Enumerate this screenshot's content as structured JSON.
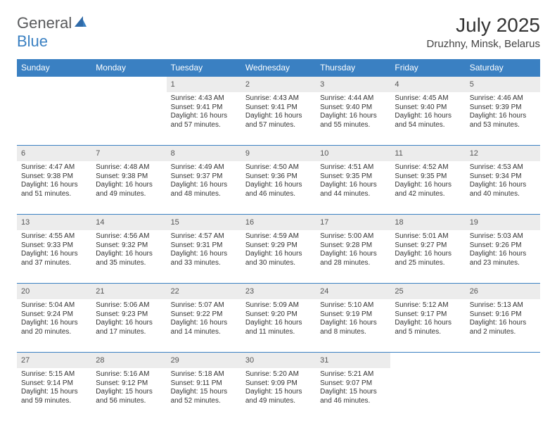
{
  "logo": {
    "textGray": "General",
    "textBlue": "Blue"
  },
  "title": "July 2025",
  "location": "Druzhny, Minsk, Belarus",
  "weekdays": [
    "Sunday",
    "Monday",
    "Tuesday",
    "Wednesday",
    "Thursday",
    "Friday",
    "Saturday"
  ],
  "colors": {
    "headerBg": "#3a80c2",
    "headerText": "#ffffff",
    "dayNumBg": "#ececec",
    "borderTop": "#3a80c2",
    "logoGray": "#58595b",
    "logoBlue": "#3a80c2",
    "bodyBg": "#ffffff"
  },
  "weeks": [
    [
      null,
      null,
      {
        "n": "1",
        "sr": "Sunrise: 4:43 AM",
        "ss": "Sunset: 9:41 PM",
        "d1": "Daylight: 16 hours",
        "d2": "and 57 minutes."
      },
      {
        "n": "2",
        "sr": "Sunrise: 4:43 AM",
        "ss": "Sunset: 9:41 PM",
        "d1": "Daylight: 16 hours",
        "d2": "and 57 minutes."
      },
      {
        "n": "3",
        "sr": "Sunrise: 4:44 AM",
        "ss": "Sunset: 9:40 PM",
        "d1": "Daylight: 16 hours",
        "d2": "and 55 minutes."
      },
      {
        "n": "4",
        "sr": "Sunrise: 4:45 AM",
        "ss": "Sunset: 9:40 PM",
        "d1": "Daylight: 16 hours",
        "d2": "and 54 minutes."
      },
      {
        "n": "5",
        "sr": "Sunrise: 4:46 AM",
        "ss": "Sunset: 9:39 PM",
        "d1": "Daylight: 16 hours",
        "d2": "and 53 minutes."
      }
    ],
    [
      {
        "n": "6",
        "sr": "Sunrise: 4:47 AM",
        "ss": "Sunset: 9:38 PM",
        "d1": "Daylight: 16 hours",
        "d2": "and 51 minutes."
      },
      {
        "n": "7",
        "sr": "Sunrise: 4:48 AM",
        "ss": "Sunset: 9:38 PM",
        "d1": "Daylight: 16 hours",
        "d2": "and 49 minutes."
      },
      {
        "n": "8",
        "sr": "Sunrise: 4:49 AM",
        "ss": "Sunset: 9:37 PM",
        "d1": "Daylight: 16 hours",
        "d2": "and 48 minutes."
      },
      {
        "n": "9",
        "sr": "Sunrise: 4:50 AM",
        "ss": "Sunset: 9:36 PM",
        "d1": "Daylight: 16 hours",
        "d2": "and 46 minutes."
      },
      {
        "n": "10",
        "sr": "Sunrise: 4:51 AM",
        "ss": "Sunset: 9:35 PM",
        "d1": "Daylight: 16 hours",
        "d2": "and 44 minutes."
      },
      {
        "n": "11",
        "sr": "Sunrise: 4:52 AM",
        "ss": "Sunset: 9:35 PM",
        "d1": "Daylight: 16 hours",
        "d2": "and 42 minutes."
      },
      {
        "n": "12",
        "sr": "Sunrise: 4:53 AM",
        "ss": "Sunset: 9:34 PM",
        "d1": "Daylight: 16 hours",
        "d2": "and 40 minutes."
      }
    ],
    [
      {
        "n": "13",
        "sr": "Sunrise: 4:55 AM",
        "ss": "Sunset: 9:33 PM",
        "d1": "Daylight: 16 hours",
        "d2": "and 37 minutes."
      },
      {
        "n": "14",
        "sr": "Sunrise: 4:56 AM",
        "ss": "Sunset: 9:32 PM",
        "d1": "Daylight: 16 hours",
        "d2": "and 35 minutes."
      },
      {
        "n": "15",
        "sr": "Sunrise: 4:57 AM",
        "ss": "Sunset: 9:31 PM",
        "d1": "Daylight: 16 hours",
        "d2": "and 33 minutes."
      },
      {
        "n": "16",
        "sr": "Sunrise: 4:59 AM",
        "ss": "Sunset: 9:29 PM",
        "d1": "Daylight: 16 hours",
        "d2": "and 30 minutes."
      },
      {
        "n": "17",
        "sr": "Sunrise: 5:00 AM",
        "ss": "Sunset: 9:28 PM",
        "d1": "Daylight: 16 hours",
        "d2": "and 28 minutes."
      },
      {
        "n": "18",
        "sr": "Sunrise: 5:01 AM",
        "ss": "Sunset: 9:27 PM",
        "d1": "Daylight: 16 hours",
        "d2": "and 25 minutes."
      },
      {
        "n": "19",
        "sr": "Sunrise: 5:03 AM",
        "ss": "Sunset: 9:26 PM",
        "d1": "Daylight: 16 hours",
        "d2": "and 23 minutes."
      }
    ],
    [
      {
        "n": "20",
        "sr": "Sunrise: 5:04 AM",
        "ss": "Sunset: 9:24 PM",
        "d1": "Daylight: 16 hours",
        "d2": "and 20 minutes."
      },
      {
        "n": "21",
        "sr": "Sunrise: 5:06 AM",
        "ss": "Sunset: 9:23 PM",
        "d1": "Daylight: 16 hours",
        "d2": "and 17 minutes."
      },
      {
        "n": "22",
        "sr": "Sunrise: 5:07 AM",
        "ss": "Sunset: 9:22 PM",
        "d1": "Daylight: 16 hours",
        "d2": "and 14 minutes."
      },
      {
        "n": "23",
        "sr": "Sunrise: 5:09 AM",
        "ss": "Sunset: 9:20 PM",
        "d1": "Daylight: 16 hours",
        "d2": "and 11 minutes."
      },
      {
        "n": "24",
        "sr": "Sunrise: 5:10 AM",
        "ss": "Sunset: 9:19 PM",
        "d1": "Daylight: 16 hours",
        "d2": "and 8 minutes."
      },
      {
        "n": "25",
        "sr": "Sunrise: 5:12 AM",
        "ss": "Sunset: 9:17 PM",
        "d1": "Daylight: 16 hours",
        "d2": "and 5 minutes."
      },
      {
        "n": "26",
        "sr": "Sunrise: 5:13 AM",
        "ss": "Sunset: 9:16 PM",
        "d1": "Daylight: 16 hours",
        "d2": "and 2 minutes."
      }
    ],
    [
      {
        "n": "27",
        "sr": "Sunrise: 5:15 AM",
        "ss": "Sunset: 9:14 PM",
        "d1": "Daylight: 15 hours",
        "d2": "and 59 minutes."
      },
      {
        "n": "28",
        "sr": "Sunrise: 5:16 AM",
        "ss": "Sunset: 9:12 PM",
        "d1": "Daylight: 15 hours",
        "d2": "and 56 minutes."
      },
      {
        "n": "29",
        "sr": "Sunrise: 5:18 AM",
        "ss": "Sunset: 9:11 PM",
        "d1": "Daylight: 15 hours",
        "d2": "and 52 minutes."
      },
      {
        "n": "30",
        "sr": "Sunrise: 5:20 AM",
        "ss": "Sunset: 9:09 PM",
        "d1": "Daylight: 15 hours",
        "d2": "and 49 minutes."
      },
      {
        "n": "31",
        "sr": "Sunrise: 5:21 AM",
        "ss": "Sunset: 9:07 PM",
        "d1": "Daylight: 15 hours",
        "d2": "and 46 minutes."
      },
      null,
      null
    ]
  ]
}
